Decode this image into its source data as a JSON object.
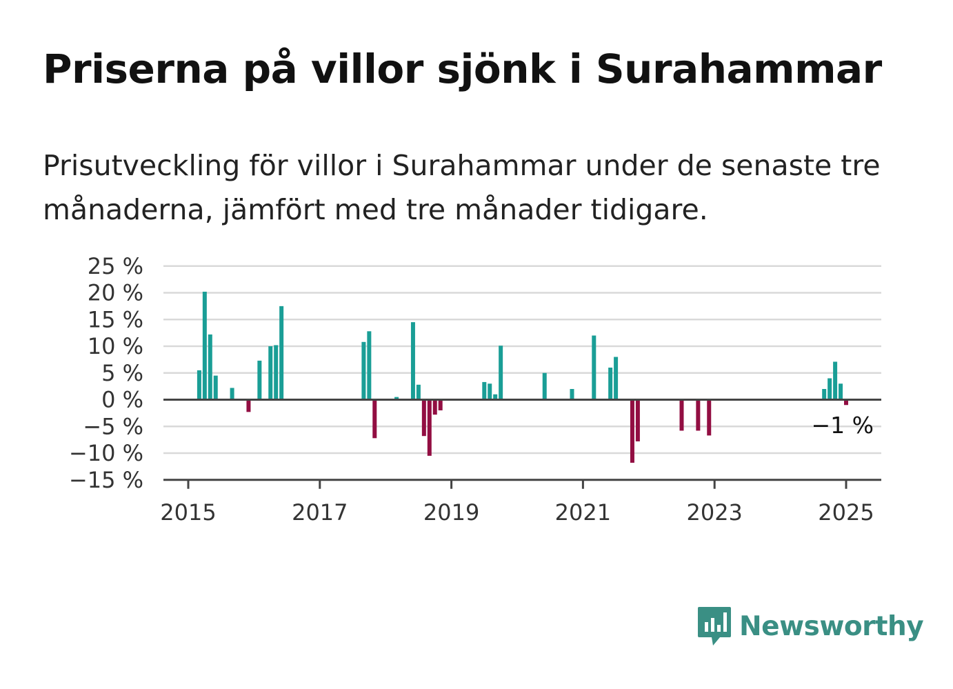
{
  "title": "Priserna på villor sjönk i Surahammar",
  "subtitle": "Prisutveckling för villor i Surahammar under de senaste tre månaderna, jämfört med tre månader tidigare.",
  "brand": {
    "name": "Newsworthy",
    "icon": "newsworthy-logo-icon",
    "color": "#3a8f84"
  },
  "colors": {
    "positive": "#1a9e96",
    "negative": "#920e42",
    "grid": "#d9d9d9",
    "axis": "#444444"
  },
  "chart_data": {
    "type": "bar",
    "title": "",
    "xlabel": "",
    "ylabel": "",
    "y_unit": " %",
    "ylim": [
      -15,
      25
    ],
    "yticks": [
      25,
      20,
      15,
      10,
      5,
      0,
      -5,
      -10,
      -15
    ],
    "ytick_labels": [
      "25 %",
      "20 %",
      "15 %",
      "10 %",
      "5 %",
      "0 %",
      "−5 %",
      "−10 %",
      "−15 %"
    ],
    "xlim": [
      "2014-10",
      "2025-07"
    ],
    "xticks": [
      "2015-01",
      "2017-01",
      "2019-01",
      "2021-01",
      "2023-01",
      "2025-01"
    ],
    "xtick_labels": [
      "2015",
      "2017",
      "2019",
      "2021",
      "2023",
      "2025"
    ],
    "grid": true,
    "legend": false,
    "end_label": "−1 %",
    "x": [
      "2015-03",
      "2015-04",
      "2015-05",
      "2015-06",
      "2015-09",
      "2015-12",
      "2016-02",
      "2016-04",
      "2016-05",
      "2016-06",
      "2017-09",
      "2017-10",
      "2017-11",
      "2018-03",
      "2018-06",
      "2018-07",
      "2018-08",
      "2018-09",
      "2018-10",
      "2018-11",
      "2019-07",
      "2019-08",
      "2019-09",
      "2019-10",
      "2020-06",
      "2020-11",
      "2021-03",
      "2021-06",
      "2021-07",
      "2021-10",
      "2021-11",
      "2022-07",
      "2022-10",
      "2022-12",
      "2024-09",
      "2024-10",
      "2024-11",
      "2024-12",
      "2025-01"
    ],
    "values": [
      5.5,
      20.2,
      12.2,
      4.5,
      2.2,
      -2.3,
      7.3,
      10,
      10.2,
      17.5,
      10.8,
      12.8,
      -7.2,
      0.5,
      14.5,
      2.8,
      -6.8,
      -10.5,
      -2.8,
      -2,
      3.3,
      3,
      1,
      10.1,
      5,
      2,
      12,
      6,
      8,
      -11.8,
      -7.8,
      -5.8,
      -5.8,
      -6.7,
      2,
      4,
      7.1,
      3,
      -1
    ]
  }
}
